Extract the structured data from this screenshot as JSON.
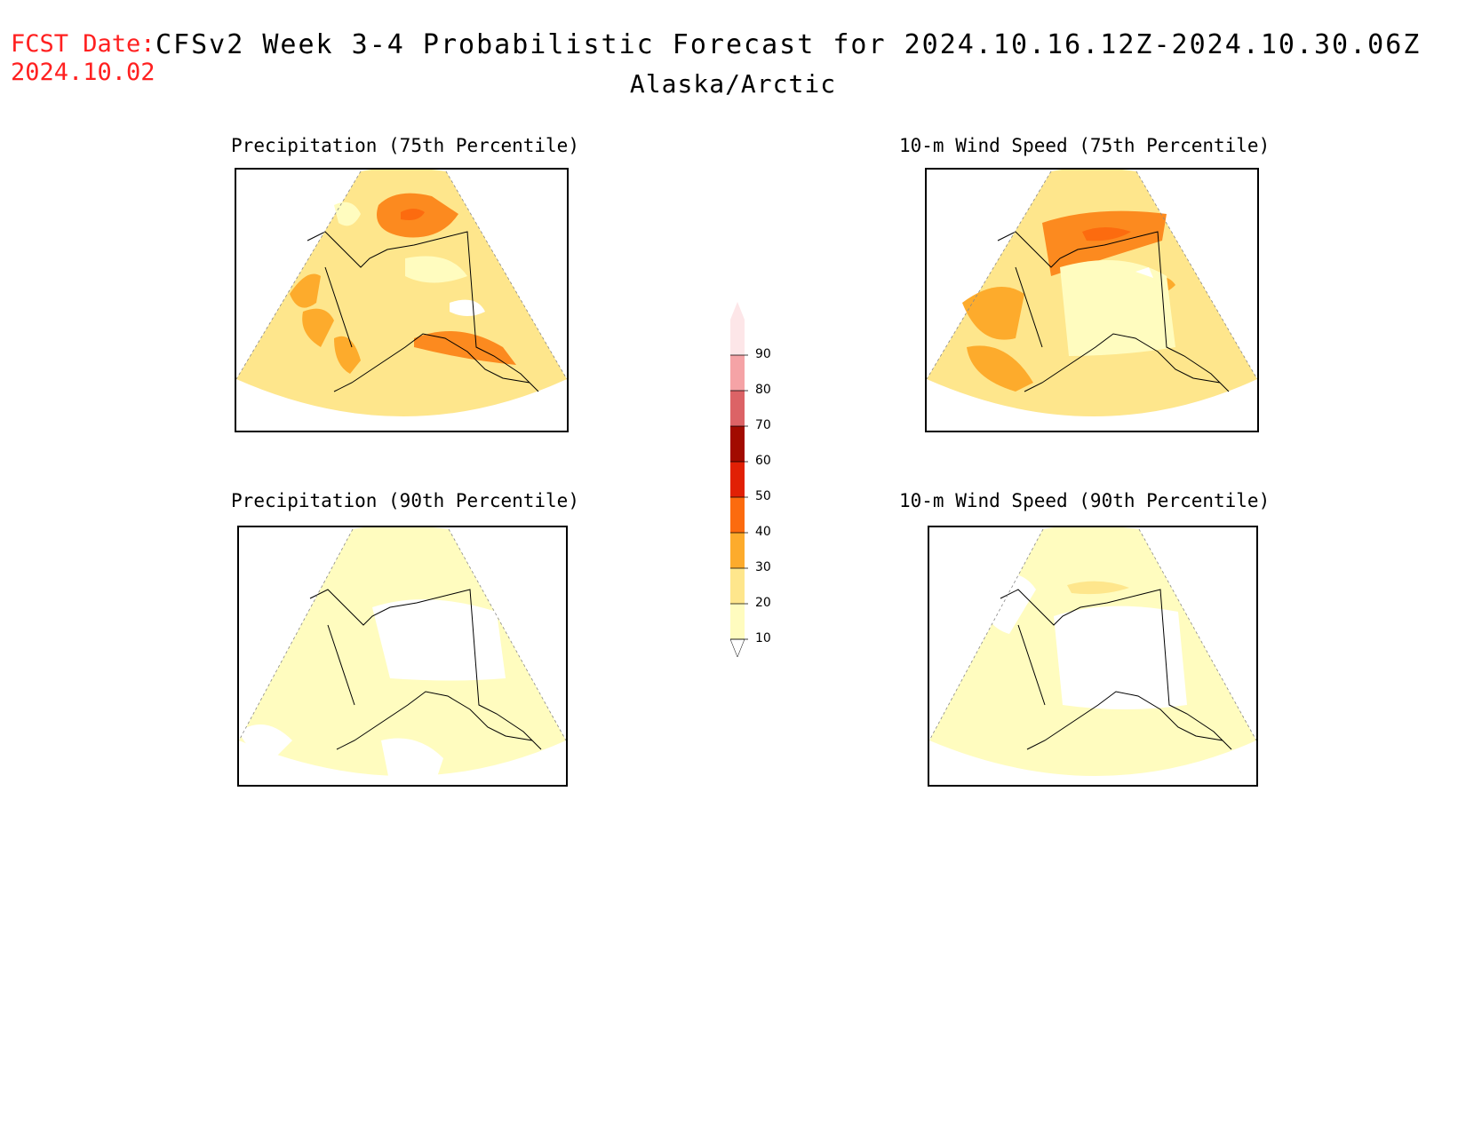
{
  "header": {
    "fcst_label": "FCST Date:",
    "fcst_date": "2024.10.02",
    "title": "CFSv2 Week 3-4 Probabilistic Forecast for 2024.10.16.12Z-2024.10.30.06Z",
    "subtitle": "Alaska/Arctic"
  },
  "panels": [
    {
      "title": "Precipitation (75th Percentile)",
      "level": "high-p75"
    },
    {
      "title": "10-m Wind Speed (75th Percentile)",
      "level": "high-w75"
    },
    {
      "title": "Precipitation (90th Percentile)",
      "level": "low-p90"
    },
    {
      "title": "10-m Wind Speed (90th Percentile)",
      "level": "low-w90"
    }
  ],
  "colorbar": {
    "levels": [
      "10",
      "20",
      "30",
      "40",
      "50",
      "60",
      "70",
      "80",
      "90"
    ],
    "colors": [
      "#fffcbf",
      "#fee68c",
      "#fdab2c",
      "#fc6b0f",
      "#e12005",
      "#a20b00",
      "#dc6366",
      "#f5a3a6",
      "#fde6e8"
    ]
  }
}
